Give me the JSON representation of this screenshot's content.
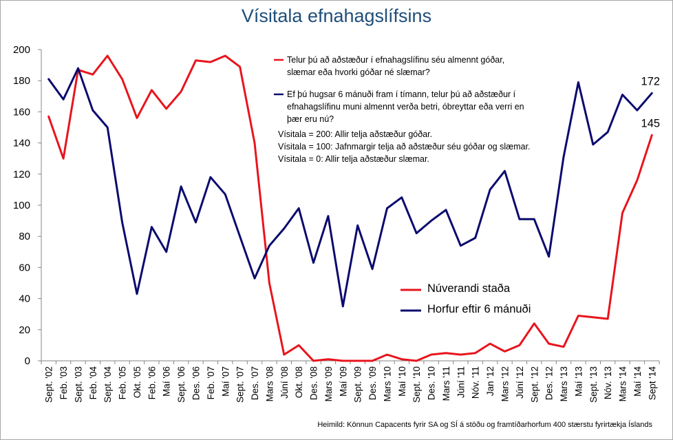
{
  "chart_data": {
    "type": "line",
    "title": "Vísitala efnahagslífsins",
    "categories": [
      "Sept. '02",
      "Feb. '03",
      "Sept. '03",
      "Feb. '04",
      "Sept. '04",
      "Feb. '05",
      "Okt. '05",
      "Feb. '06",
      "Maí '06",
      "Sept. '06",
      "Des. '06",
      "Feb. '07",
      "Maí '07",
      "Sept. '07",
      "Des. '07",
      "Mars '08",
      "Júní '08",
      "Okt. '08",
      "Des. '08",
      "Mars '09",
      "Maí '09",
      "Sept. '09",
      "Des. '09",
      "Mars '10",
      "Maí '10",
      "Sept. '10",
      "Des. '10",
      "Mars '11",
      "Júní '11",
      "Nóv. '11",
      "Jan '12",
      "Mars '12",
      "Júní '12",
      "Sept. '12",
      "Des. '12",
      "Mars '13",
      "Maí '13",
      "Sept. '13",
      "Nóv. '13",
      "Mars '14",
      "Maí '14",
      "Sept '14"
    ],
    "series": [
      {
        "name": "Núverandi staða",
        "color": "#e8141c",
        "values": [
          157,
          130,
          187,
          184,
          196,
          181,
          156,
          174,
          162,
          173,
          193,
          192,
          196,
          189,
          140,
          50,
          4,
          10,
          0,
          1,
          0,
          0,
          0,
          4,
          1,
          0,
          4,
          5,
          4,
          5,
          11,
          6,
          10,
          24,
          11,
          9,
          29,
          28,
          27,
          95,
          116,
          145
        ],
        "end_label": "145"
      },
      {
        "name": "Horfur eftir 6 mánuði",
        "color": "#0a0a6e",
        "values": [
          181,
          168,
          188,
          161,
          150,
          89,
          43,
          86,
          70,
          112,
          89,
          118,
          107,
          80,
          53,
          74,
          85,
          98,
          63,
          93,
          35,
          87,
          59,
          98,
          105,
          82,
          90,
          97,
          74,
          79,
          110,
          122,
          91,
          91,
          67,
          131,
          179,
          139,
          147,
          171,
          161,
          172
        ],
        "end_label": "172"
      }
    ],
    "ylim": [
      0,
      200
    ],
    "yticks": [
      "0",
      "20",
      "40",
      "60",
      "80",
      "100",
      "120",
      "140",
      "160",
      "180",
      "200"
    ],
    "grid": false,
    "legend": [
      {
        "label": "Núverandi staða",
        "color": "#e8141c"
      },
      {
        "label": "Horfur eftir 6 mánuði",
        "color": "#0a0a6e"
      }
    ],
    "question_red": [
      "Telur þú að aðstæður í efnahagslífinu séu almennt góðar,",
      "slæmar eða hvorki góðar né slæmar?"
    ],
    "question_blue": [
      "Ef þú hugsar 6 mánuði fram í tímann, telur þú að aðstæður í",
      "efnahagslífinu muni almennt verða betri, óbreyttar eða verri en",
      "þær eru nú?"
    ],
    "index_notes": [
      "Vísitala = 200:  Allir telja aðstæður góðar.",
      "Vísitala = 100:  Jafnmargir telja að aðstæður séu góðar og slæmar.",
      "Vísitala = 0:  Allir telja aðstæður slæmar."
    ],
    "source": "Heimild: Könnun Capacents fyrir SA og SÍ á stöðu og framtíðarhorfum 400 stærstu fyrirtækja Íslands"
  }
}
